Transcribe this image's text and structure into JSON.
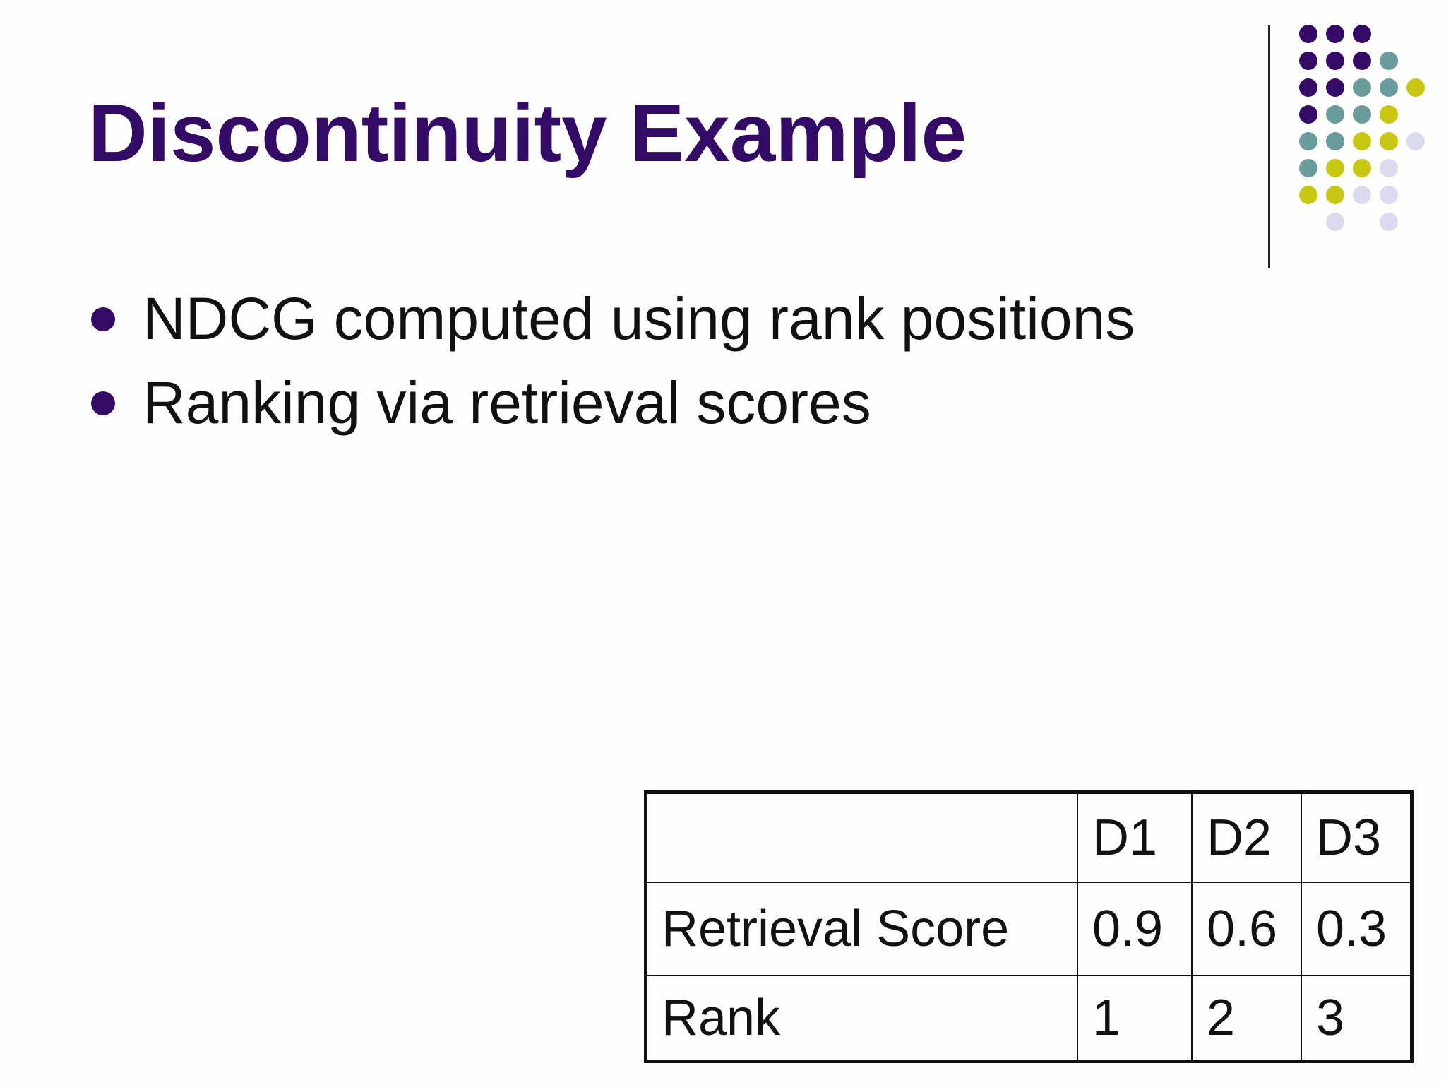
{
  "slide": {
    "title": "Discontinuity Example",
    "bullets": [
      "NDCG computed using rank positions",
      "Ranking via retrieval scores"
    ],
    "table": {
      "header": [
        "",
        "D1",
        "D2",
        "D3"
      ],
      "rows": [
        [
          "Retrieval Score",
          "0.9",
          "0.6",
          "0.3"
        ],
        [
          "Rank",
          "1",
          "2",
          "3"
        ]
      ]
    }
  },
  "colors": {
    "title": "#330a66",
    "bullet": "#330a66",
    "dot_purple": "#330a66",
    "dot_teal": "#6b9c9c",
    "dot_yellow": "#c8c814",
    "dot_lavender": "#dcdaee",
    "text": "#111111"
  }
}
